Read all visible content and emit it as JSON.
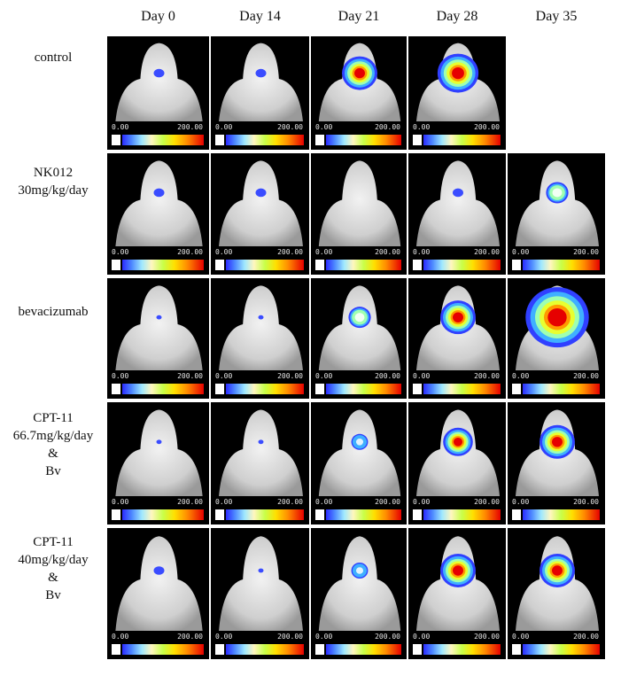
{
  "days": [
    "Day 0",
    "Day 14",
    "Day 21",
    "Day 28",
    "Day 35"
  ],
  "scale": {
    "min": "0.00",
    "max": "200.00"
  },
  "rows": [
    {
      "label": "control",
      "panels": [
        {
          "signal": "small"
        },
        {
          "signal": "small"
        },
        {
          "signal": "large"
        },
        {
          "signal": "large-spread"
        },
        null
      ]
    },
    {
      "label": "NK012\n30mg/kg/day",
      "panels": [
        {
          "signal": "small"
        },
        {
          "signal": "small"
        },
        {
          "signal": "none"
        },
        {
          "signal": "small"
        },
        {
          "signal": "medium"
        }
      ]
    },
    {
      "label": "bevacizumab",
      "panels": [
        {
          "signal": "tiny"
        },
        {
          "signal": "tiny"
        },
        {
          "signal": "medium"
        },
        {
          "signal": "large"
        },
        {
          "signal": "huge"
        }
      ]
    },
    {
      "label": "CPT-11\n66.7mg/kg/day\n&\nBv",
      "panels": [
        {
          "signal": "tiny"
        },
        {
          "signal": "tiny"
        },
        {
          "signal": "small-bright"
        },
        {
          "signal": "medium-large"
        },
        {
          "signal": "large"
        }
      ]
    },
    {
      "label": "CPT-11\n40mg/kg/day\n&\nBv",
      "panels": [
        {
          "signal": "small"
        },
        {
          "signal": "tiny"
        },
        {
          "signal": "small-bright"
        },
        {
          "signal": "large"
        },
        {
          "signal": "large"
        }
      ]
    }
  ]
}
